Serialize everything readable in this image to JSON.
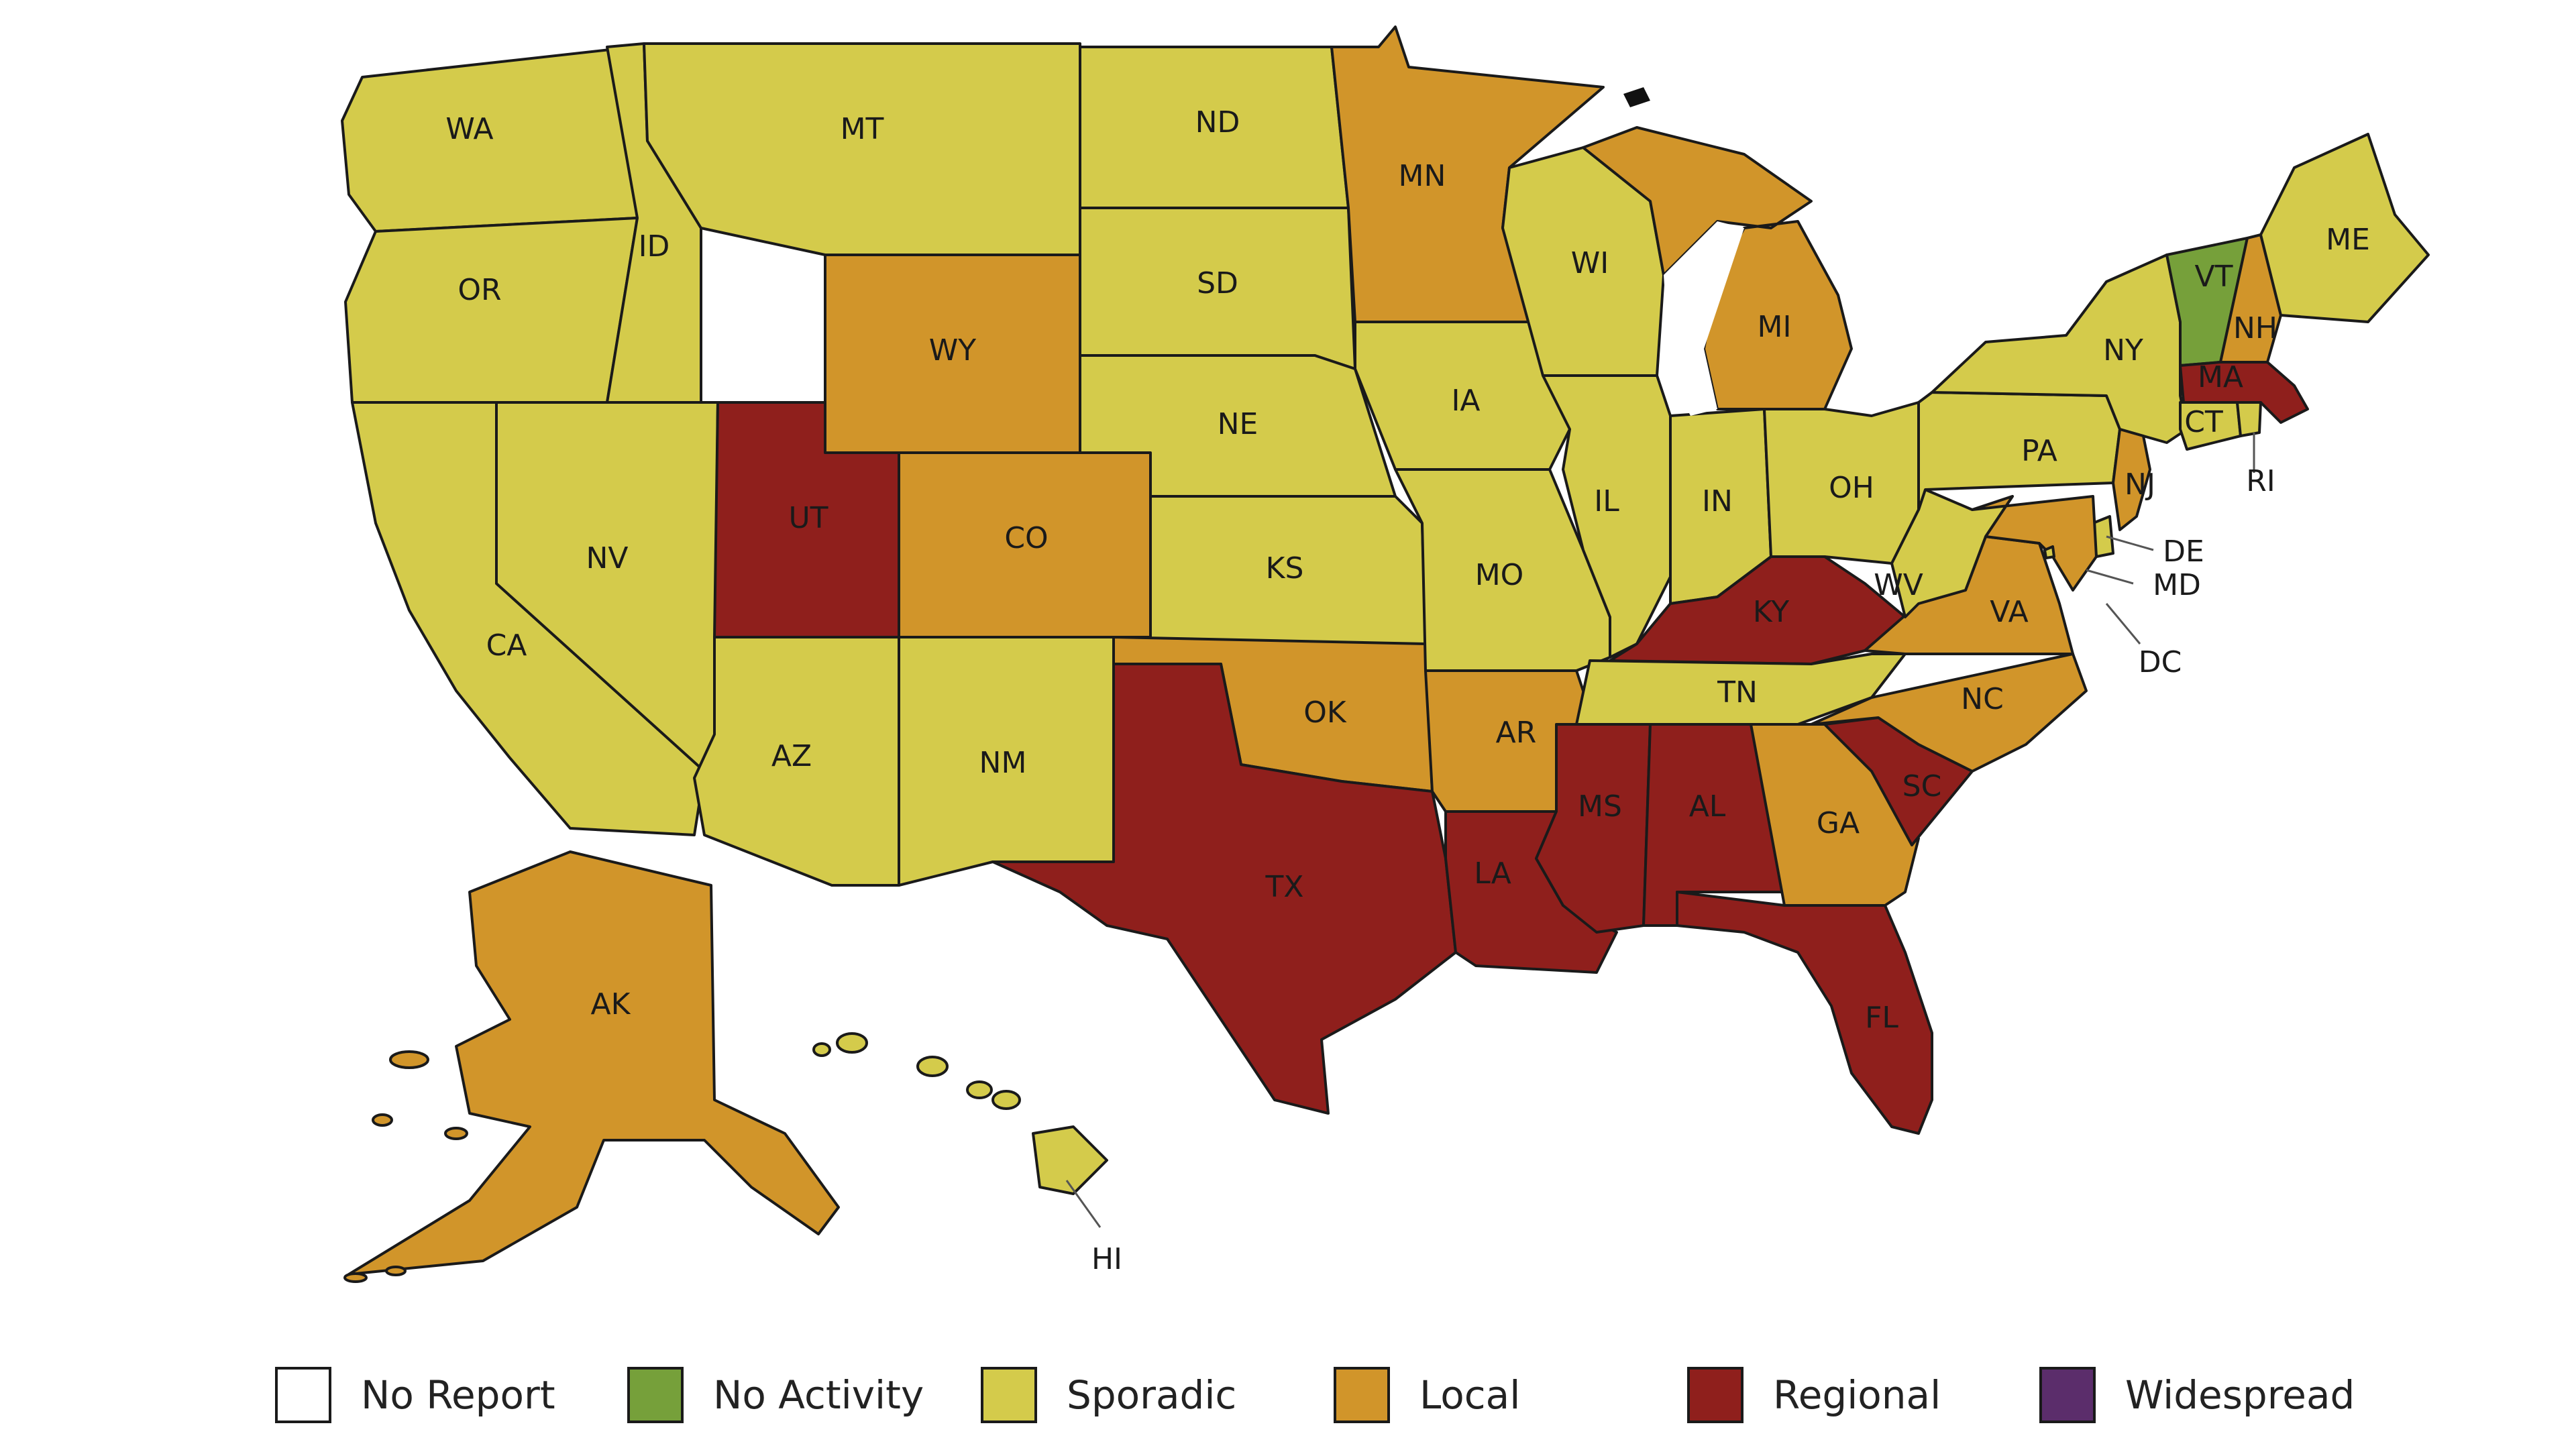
{
  "colors": {
    "no_report": "#ffffff",
    "no_activity": "#76a03a",
    "sporadic": "#d4cb4b",
    "local": "#d1952a",
    "regional": "#8f1f1c",
    "widespread": "#5b2d6b"
  },
  "legend": [
    {
      "key": "no_report",
      "label": "No Report"
    },
    {
      "key": "no_activity",
      "label": "No Activity"
    },
    {
      "key": "sporadic",
      "label": "Sporadic"
    },
    {
      "key": "local",
      "label": "Local"
    },
    {
      "key": "regional",
      "label": "Regional"
    },
    {
      "key": "widespread",
      "label": "Widespread"
    }
  ],
  "states": {
    "WA": {
      "label": "WA",
      "level": "sporadic"
    },
    "OR": {
      "label": "OR",
      "level": "sporadic"
    },
    "CA": {
      "label": "CA",
      "level": "sporadic"
    },
    "ID": {
      "label": "ID",
      "level": "sporadic"
    },
    "NV": {
      "label": "NV",
      "level": "sporadic"
    },
    "MT": {
      "label": "MT",
      "level": "sporadic"
    },
    "WY": {
      "label": "WY",
      "level": "local"
    },
    "UT": {
      "label": "UT",
      "level": "regional"
    },
    "CO": {
      "label": "CO",
      "level": "local"
    },
    "AZ": {
      "label": "AZ",
      "level": "sporadic"
    },
    "NM": {
      "label": "NM",
      "level": "sporadic"
    },
    "ND": {
      "label": "ND",
      "level": "sporadic"
    },
    "SD": {
      "label": "SD",
      "level": "sporadic"
    },
    "NE": {
      "label": "NE",
      "level": "sporadic"
    },
    "KS": {
      "label": "KS",
      "level": "sporadic"
    },
    "OK": {
      "label": "OK",
      "level": "local"
    },
    "TX": {
      "label": "TX",
      "level": "regional"
    },
    "MN": {
      "label": "MN",
      "level": "local"
    },
    "IA": {
      "label": "IA",
      "level": "sporadic"
    },
    "MO": {
      "label": "MO",
      "level": "sporadic"
    },
    "AR": {
      "label": "AR",
      "level": "local"
    },
    "LA": {
      "label": "LA",
      "level": "regional"
    },
    "WI": {
      "label": "WI",
      "level": "sporadic"
    },
    "IL": {
      "label": "IL",
      "level": "sporadic"
    },
    "MI": {
      "label": "MI",
      "level": "local"
    },
    "IN": {
      "label": "IN",
      "level": "sporadic"
    },
    "OH": {
      "label": "OH",
      "level": "sporadic"
    },
    "KY": {
      "label": "KY",
      "level": "regional"
    },
    "TN": {
      "label": "TN",
      "level": "sporadic"
    },
    "MS": {
      "label": "MS",
      "level": "regional"
    },
    "AL": {
      "label": "AL",
      "level": "regional"
    },
    "GA": {
      "label": "GA",
      "level": "local"
    },
    "FL": {
      "label": "FL",
      "level": "regional"
    },
    "SC": {
      "label": "SC",
      "level": "regional"
    },
    "NC": {
      "label": "NC",
      "level": "local"
    },
    "VA": {
      "label": "VA",
      "level": "local"
    },
    "WV": {
      "label": "WV",
      "level": "sporadic"
    },
    "PA": {
      "label": "PA",
      "level": "sporadic"
    },
    "NY": {
      "label": "NY",
      "level": "sporadic"
    },
    "NJ": {
      "label": "NJ",
      "level": "local"
    },
    "DE": {
      "label": "DE",
      "level": "sporadic"
    },
    "MD": {
      "label": "MD",
      "level": "local"
    },
    "DC": {
      "label": "DC",
      "level": "sporadic"
    },
    "CT": {
      "label": "CT",
      "level": "sporadic"
    },
    "RI": {
      "label": "RI",
      "level": "sporadic"
    },
    "MA": {
      "label": "MA",
      "level": "regional"
    },
    "VT": {
      "label": "VT",
      "level": "no_activity"
    },
    "NH": {
      "label": "NH",
      "level": "local"
    },
    "ME": {
      "label": "ME",
      "level": "sporadic"
    },
    "AK": {
      "label": "AK",
      "level": "local"
    },
    "HI": {
      "label": "HI",
      "level": "sporadic"
    }
  }
}
